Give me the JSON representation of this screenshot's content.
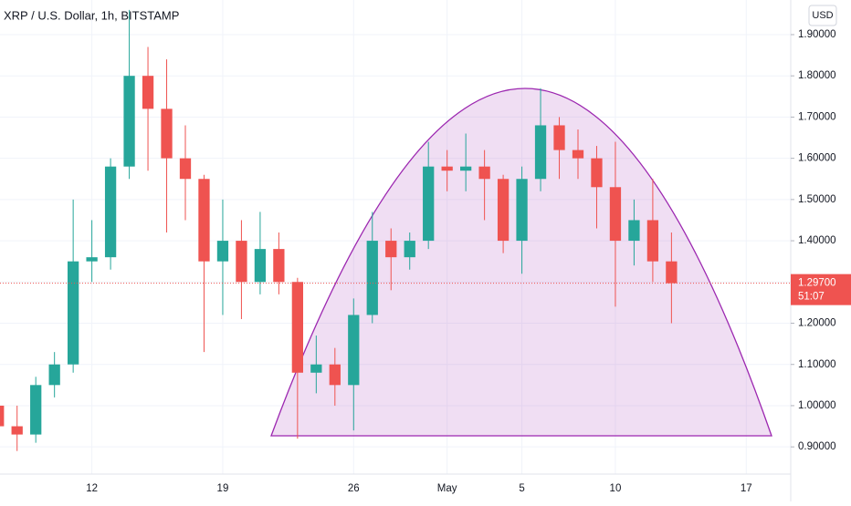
{
  "chart_data": {
    "type": "candlestick",
    "title": "XRP / U.S. Dollar, 1h, BITSTAMP",
    "currency": "USD",
    "categories": [
      null,
      null,
      null,
      null,
      null,
      "12",
      null,
      null,
      null,
      null,
      null,
      null,
      "19",
      null,
      null,
      null,
      null,
      null,
      null,
      "26",
      null,
      null,
      null,
      null,
      "May",
      null,
      null,
      null,
      "5",
      null,
      null,
      null,
      null,
      "10",
      null,
      null,
      null,
      null,
      null,
      null,
      "17",
      null
    ],
    "open": [
      1.0,
      0.95,
      0.93,
      1.05,
      1.1,
      1.35,
      1.36,
      1.58,
      1.8,
      1.72,
      1.6,
      1.55,
      1.35,
      1.4,
      1.3,
      1.38,
      1.3,
      1.08,
      1.1,
      1.05,
      1.22,
      1.4,
      1.36,
      1.4,
      1.58,
      1.57,
      1.58,
      1.55,
      1.4,
      1.55,
      1.68,
      1.62,
      1.6,
      1.53,
      1.4,
      1.45,
      1.35,
      null,
      null,
      null,
      null,
      null
    ],
    "high": [
      1.08,
      1.0,
      1.07,
      1.13,
      1.5,
      1.45,
      1.6,
      1.96,
      1.87,
      1.84,
      1.68,
      1.56,
      1.5,
      1.45,
      1.47,
      1.42,
      1.31,
      1.17,
      1.14,
      1.26,
      1.47,
      1.43,
      1.42,
      1.64,
      1.62,
      1.66,
      1.62,
      1.56,
      1.58,
      1.77,
      1.7,
      1.67,
      1.63,
      1.64,
      1.5,
      1.55,
      1.42,
      null,
      null,
      null,
      null,
      null
    ],
    "low": [
      0.93,
      0.89,
      0.91,
      1.02,
      1.08,
      1.3,
      1.33,
      1.55,
      1.57,
      1.42,
      1.45,
      1.13,
      1.22,
      1.21,
      1.27,
      1.27,
      0.92,
      1.03,
      1.0,
      0.94,
      1.2,
      1.28,
      1.33,
      1.38,
      1.52,
      1.52,
      1.45,
      1.37,
      1.32,
      1.52,
      1.55,
      1.55,
      1.43,
      1.24,
      1.34,
      1.3,
      1.2,
      null,
      null,
      null,
      null,
      null
    ],
    "close": [
      0.95,
      0.93,
      1.05,
      1.1,
      1.35,
      1.36,
      1.58,
      1.8,
      1.72,
      1.6,
      1.55,
      1.35,
      1.4,
      1.3,
      1.38,
      1.3,
      1.08,
      1.1,
      1.05,
      1.22,
      1.4,
      1.36,
      1.4,
      1.58,
      1.57,
      1.58,
      1.55,
      1.4,
      1.55,
      1.68,
      1.62,
      1.6,
      1.53,
      1.4,
      1.45,
      1.35,
      1.297,
      null,
      null,
      null,
      null,
      null
    ],
    "up_color": "#26a69a",
    "down_color": "#ef5350",
    "ylim": [
      0.834,
      1.984
    ],
    "yticks": [
      {
        "value": 0.9,
        "label": "0.90000"
      },
      {
        "value": 1.0,
        "label": "1.00000"
      },
      {
        "value": 1.1,
        "label": "1.10000"
      },
      {
        "value": 1.2,
        "label": "1.20000"
      },
      {
        "value": 1.3,
        "label": "1.30000"
      },
      {
        "value": 1.4,
        "label": "1.40000"
      },
      {
        "value": 1.5,
        "label": "1.50000"
      },
      {
        "value": 1.6,
        "label": "1.60000"
      },
      {
        "value": 1.7,
        "label": "1.70000"
      },
      {
        "value": 1.8,
        "label": "1.80000"
      },
      {
        "value": 1.9,
        "label": "1.90000"
      }
    ],
    "last_price": {
      "value": 1.297,
      "label": "1.29700"
    },
    "countdown": "51:07",
    "grid": true
  }
}
